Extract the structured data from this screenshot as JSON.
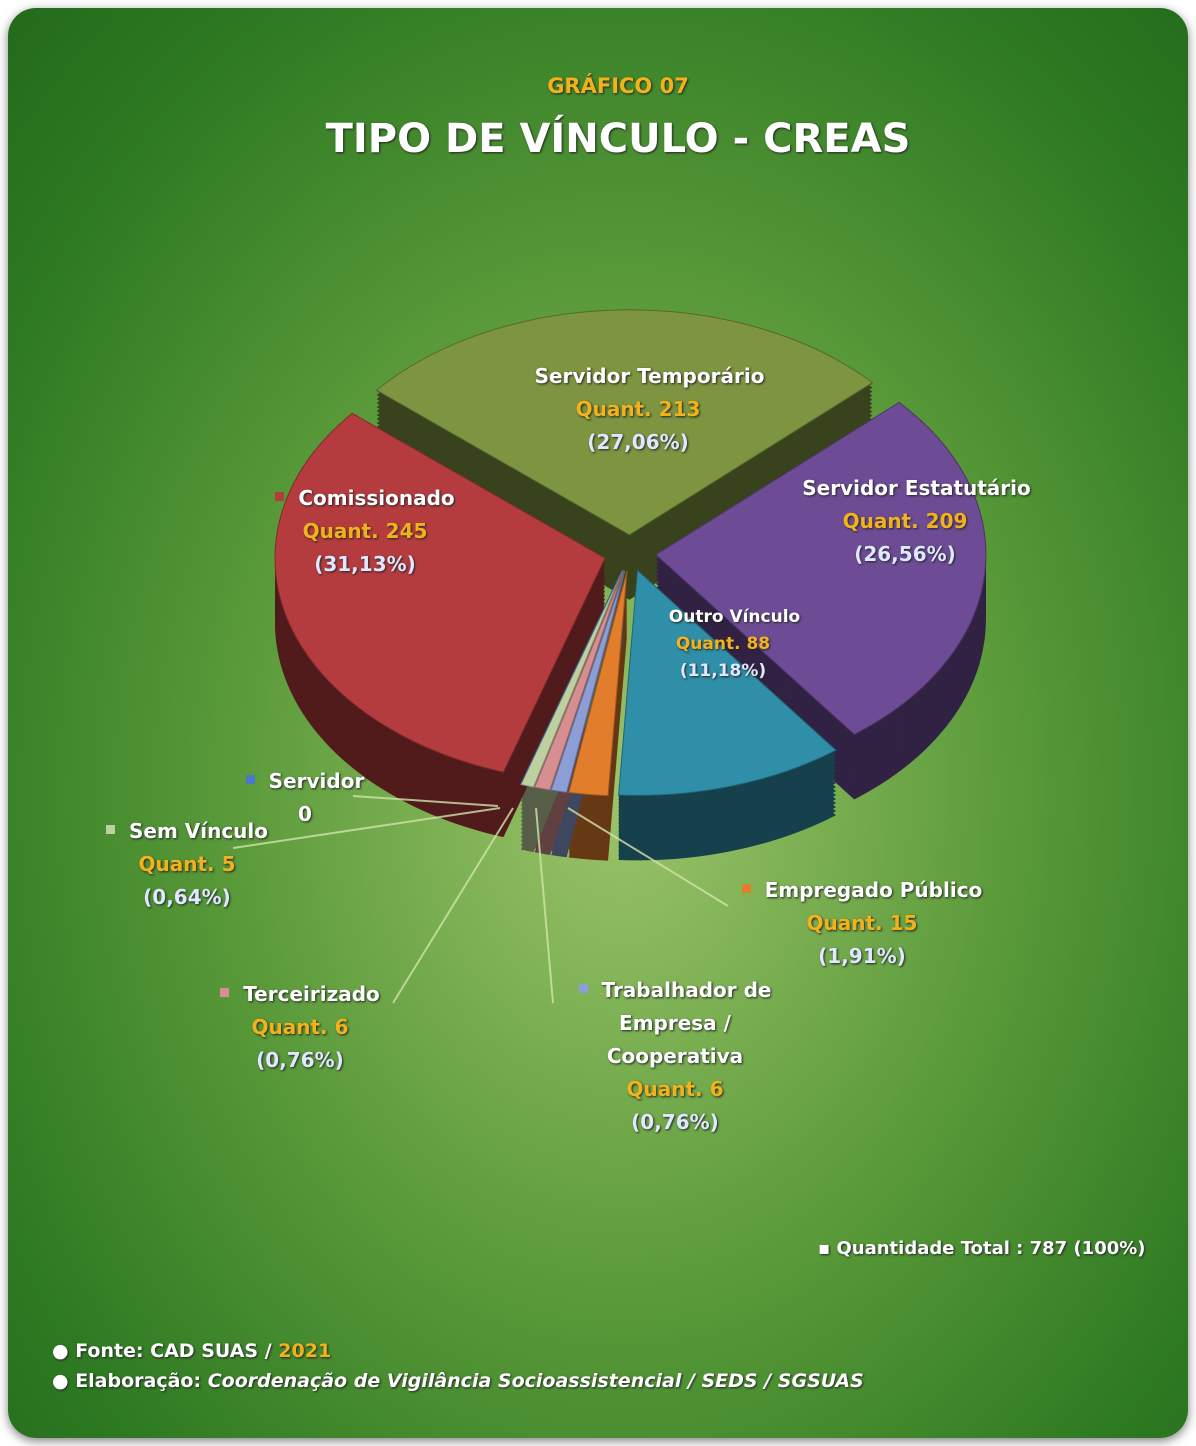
{
  "header": "GRÁFICO 07",
  "chart_data": {
    "type": "pie",
    "title": "TIPO DE VÍNCULO - CREAS",
    "categories": [
      "Servidor Temporário",
      "Servidor Estatutário",
      "Outro Vínculo",
      "Empregado Público",
      "Trabalhador de Empresa / Cooperativa",
      "Terceirizado",
      "Sem Vínculo",
      "Servidor",
      "Comissionado"
    ],
    "values": [
      213,
      209,
      88,
      15,
      6,
      6,
      5,
      0,
      245
    ],
    "value_labels": [
      "Quant. 213",
      "Quant. 209",
      "Quant. 88",
      "Quant. 15",
      "Quant. 6",
      "Quant. 6",
      "Quant. 5",
      "0",
      "Quant. 245"
    ],
    "percent_labels": [
      "(27,06%)",
      "(26,56%)",
      "(11,18%)",
      "(1,91%)",
      "(0,76%)",
      "(0,76%)",
      "(0,64%)",
      null,
      "(31,13%)"
    ],
    "colors": [
      "#7d9440",
      "#6d4c95",
      "#2f8fa8",
      "#e27d2c",
      "#8d9ed6",
      "#d68e90",
      "#bfd0a0",
      "#4a78c8",
      "#b53c3e"
    ]
  },
  "total_note": "▪ Quantidade Total : 787 (100%)",
  "footer": {
    "source_label": "● Fonte: CAD SUAS /",
    "source_year": "2021",
    "credit_label": "● Elaboração:",
    "credit_text": "Coordenação de Vigilância Socioassistencial / SEDS / SGSUAS"
  }
}
